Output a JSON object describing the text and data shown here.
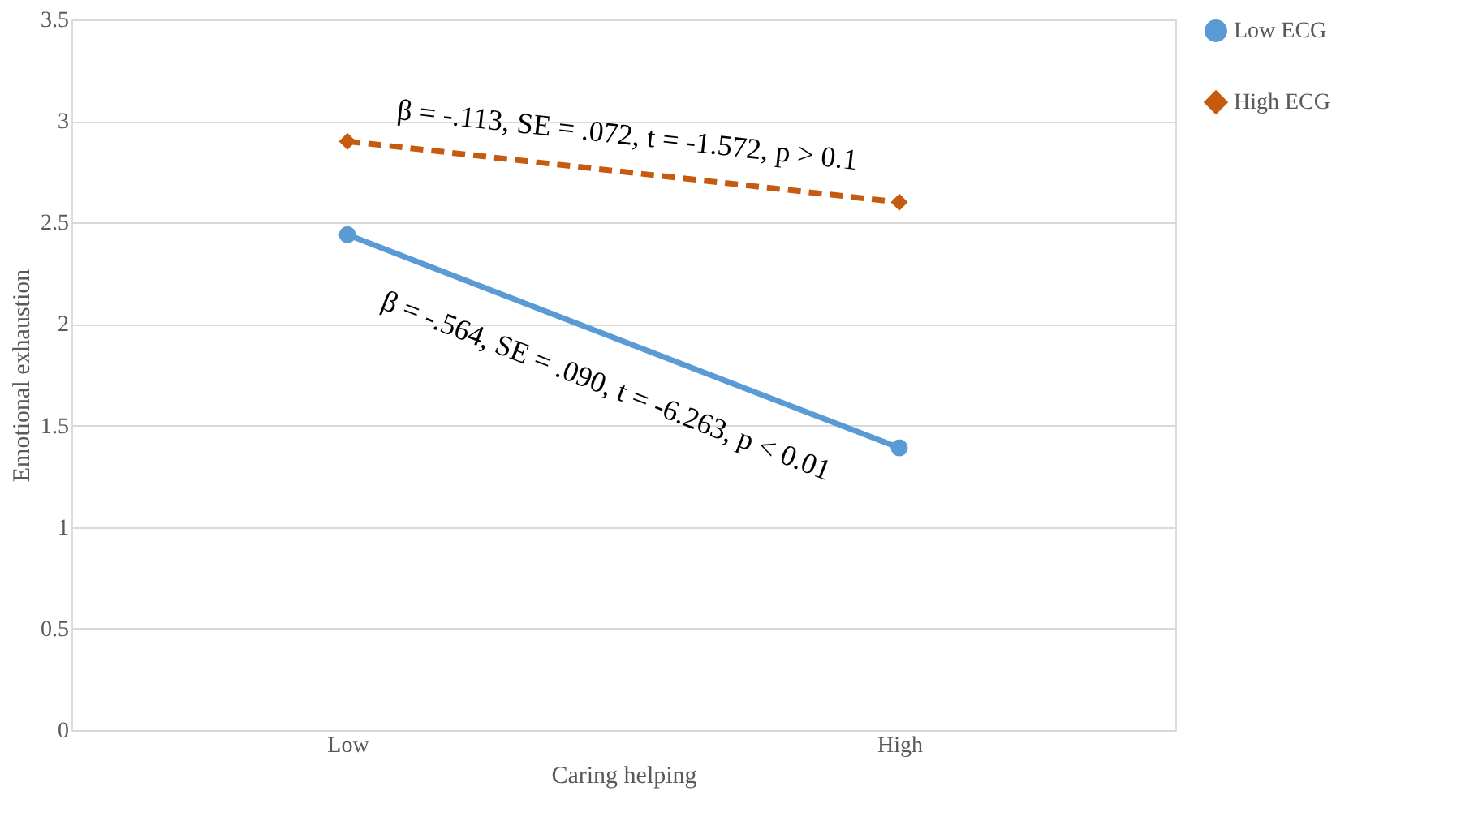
{
  "chart_data": {
    "type": "line",
    "xlabel": "Caring helping",
    "ylabel": "Emotional exhaustion",
    "categories": [
      "Low",
      "High"
    ],
    "series": [
      {
        "name": "Low ECG",
        "color": "#5b9bd5",
        "values": [
          2.44,
          1.39
        ],
        "marker": "circle",
        "line_style": "solid"
      },
      {
        "name": "High ECG",
        "color": "#c55a11",
        "values": [
          2.9,
          2.6
        ],
        "marker": "diamond",
        "line_style": "dashed"
      }
    ],
    "annotations": [
      "β = -.564, SE = .090, t = -6.263, p < 0.01",
      "β = -.113, SE = .072, t = -1.572, p > 0.1"
    ],
    "ylim": [
      0,
      3.5
    ],
    "yticks": [
      0,
      0.5,
      1,
      1.5,
      2,
      2.5,
      3,
      3.5
    ],
    "grid": "y",
    "legend": "right"
  }
}
